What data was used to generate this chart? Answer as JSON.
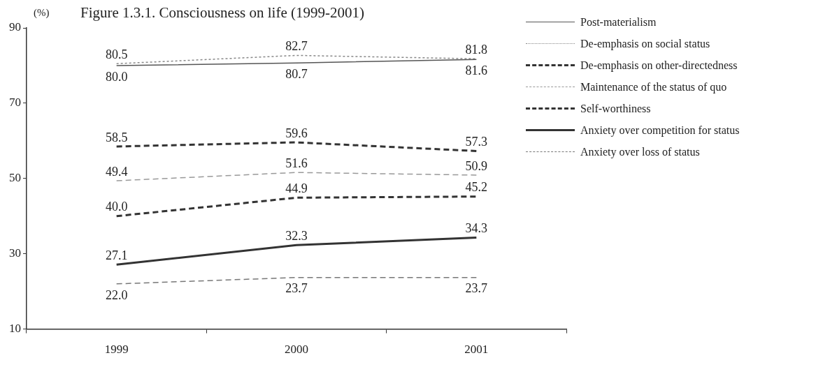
{
  "chart_data": {
    "type": "line",
    "title": "Figure 1.3.1.   Consciousness on life (1999-2001)",
    "ylabel": "(%)",
    "categories": [
      "1999",
      "2000",
      "2001"
    ],
    "ylim": [
      10,
      90
    ],
    "yticks": [
      10,
      30,
      50,
      70,
      90
    ],
    "grid": false,
    "legend": "right",
    "marker": "none",
    "series": [
      {
        "name": "Post-materialism",
        "color": "#555555",
        "line_style": "solid",
        "values": [
          80.0,
          80.7,
          81.6
        ],
        "value_labels": [
          "80.0",
          "80.7",
          "81.6"
        ]
      },
      {
        "name": "De-emphasis on social status",
        "color": "#888888",
        "line_style": "dotted",
        "values": [
          80.5,
          82.7,
          81.8
        ],
        "value_labels": [
          "80.5",
          "82.7",
          "81.8"
        ]
      },
      {
        "name": "De-emphasis on other-directedness",
        "color": "#333333",
        "line_style": "dashed",
        "values": [
          58.5,
          59.6,
          57.3
        ],
        "value_labels": [
          "58.5",
          "59.6",
          "57.3"
        ]
      },
      {
        "name": "Maintenance of the status of quo",
        "color": "#999999",
        "line_style": "dashed",
        "values": [
          49.4,
          51.6,
          50.9
        ],
        "value_labels": [
          "49.4",
          "51.6",
          "50.9"
        ]
      },
      {
        "name": "Self-worthiness",
        "color": "#333333",
        "line_style": "dashed",
        "values": [
          40.0,
          44.9,
          45.2
        ],
        "value_labels": [
          "40.0",
          "44.9",
          "45.2"
        ]
      },
      {
        "name": "Anxiety over competition for status",
        "color": "#333333",
        "line_style": "solid",
        "values": [
          27.1,
          32.3,
          34.3
        ],
        "value_labels": [
          "27.1",
          "32.3",
          "34.3"
        ]
      },
      {
        "name": "Anxiety over loss of status",
        "color": "#777777",
        "line_style": "dashed",
        "values": [
          22.0,
          23.7,
          23.7
        ],
        "value_labels": [
          "22.0",
          "23.7",
          "23.7"
        ]
      }
    ]
  }
}
